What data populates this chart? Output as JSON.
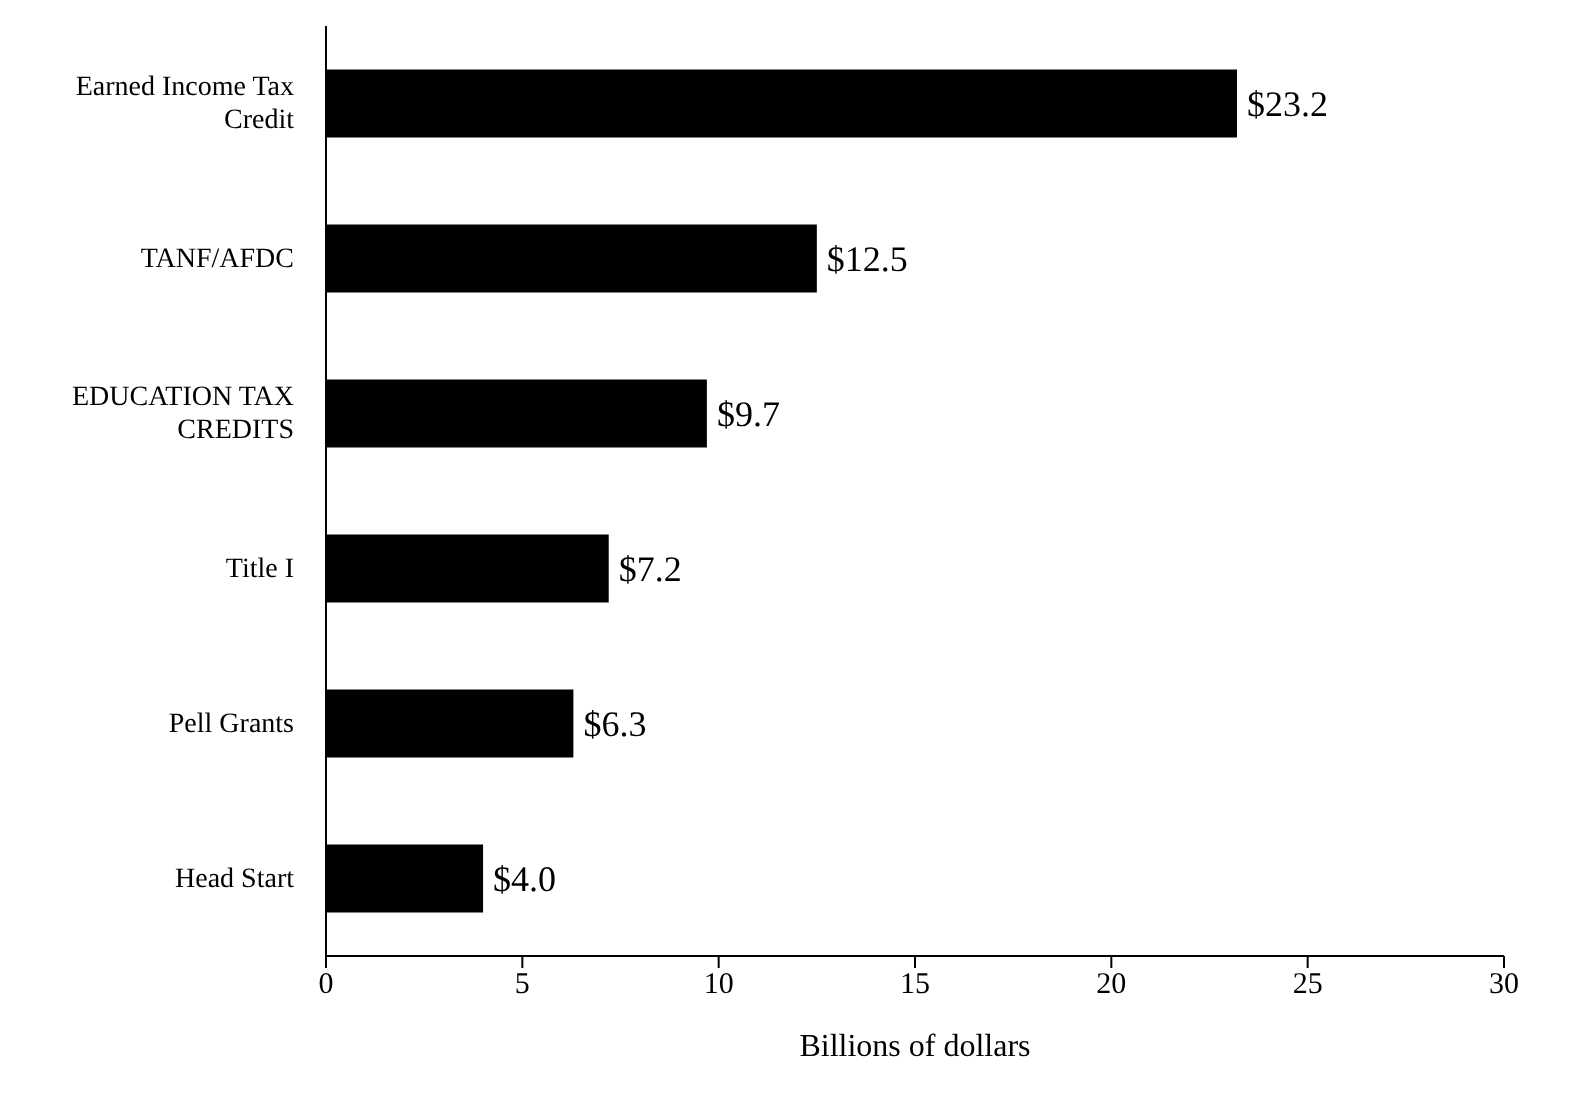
{
  "chart_data": {
    "type": "bar",
    "orientation": "horizontal",
    "xlabel": "Billions of dollars",
    "categories": [
      "Earned Income Tax Credit",
      "TANF/AFDC",
      "EDUCATION TAX CREDITS",
      "Title I",
      "Pell Grants",
      "Head Start"
    ],
    "values": [
      23.2,
      12.5,
      9.7,
      7.2,
      6.3,
      4.0
    ],
    "value_labels": [
      "$23.2",
      "$12.5",
      "$9.7",
      "$7.2",
      "$6.3",
      "$4.0"
    ],
    "color": "#000000",
    "xlim": [
      0,
      30
    ],
    "xticks": [
      0,
      5,
      10,
      15,
      20,
      25,
      30
    ],
    "grid": false,
    "legend": false
  }
}
